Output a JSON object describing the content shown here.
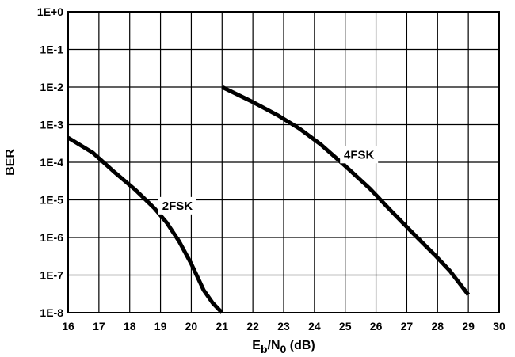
{
  "chart_data": {
    "type": "line",
    "xlabel": {
      "main": "E",
      "sub1": "b",
      "mid": "/N",
      "sub2": "0",
      "tail": " (dB)"
    },
    "ylabel": "BER",
    "xlim": [
      16,
      30
    ],
    "ylim_exp": [
      -8,
      0
    ],
    "y_scale": "log",
    "grid": true,
    "legend": "none",
    "x_ticks": [
      "16",
      "17",
      "18",
      "19",
      "20",
      "21",
      "22",
      "23",
      "24",
      "25",
      "26",
      "27",
      "28",
      "29",
      "30"
    ],
    "y_ticks": [
      "1E+0",
      "1E-1",
      "1E-2",
      "1E-3",
      "1E-4",
      "1E-5",
      "1E-6",
      "1E-7",
      "1E-8"
    ],
    "series": [
      {
        "name": "2FSK",
        "color": "#000000",
        "x": [
          16.0,
          16.8,
          17.5,
          18.2,
          18.8,
          19.2,
          19.6,
          20.0,
          20.4,
          20.7,
          21.0
        ],
        "y": [
          0.00045,
          0.00018,
          5.5e-05,
          1.8e-05,
          6e-06,
          2.5e-06,
          8e-07,
          2e-07,
          4e-08,
          1.8e-08,
          1e-08
        ]
      },
      {
        "name": "4FSK",
        "color": "#000000",
        "x": [
          21.0,
          22.0,
          22.8,
          23.5,
          24.2,
          25.0,
          25.8,
          26.5,
          27.2,
          27.9,
          28.4,
          29.0
        ],
        "y": [
          0.01,
          0.004,
          0.0018,
          0.0008,
          0.0003,
          8e-05,
          2e-05,
          5e-06,
          1.3e-06,
          3.5e-07,
          1.3e-07,
          3e-08
        ]
      }
    ],
    "annotations": [
      {
        "text": "2FSK",
        "x": 19.55,
        "y": 7e-06
      },
      {
        "text": "4FSK",
        "x": 25.45,
        "y": 0.00016
      }
    ]
  }
}
